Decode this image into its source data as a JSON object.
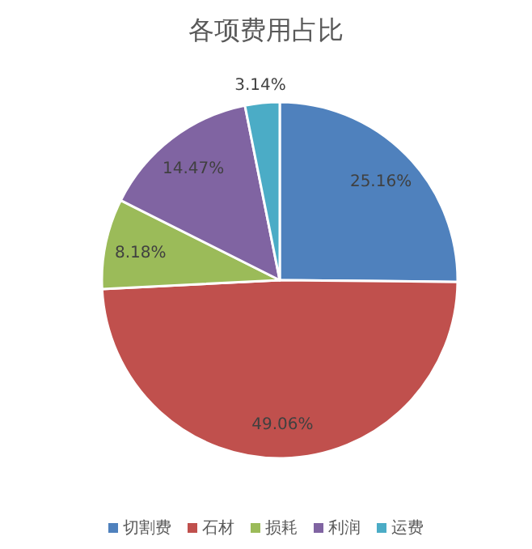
{
  "chart_data": {
    "type": "pie",
    "title": "各项费用占比",
    "categories": [
      "切割费",
      "石材",
      "损耗",
      "利润",
      "运费"
    ],
    "values": [
      25.16,
      49.06,
      8.18,
      14.47,
      3.14
    ],
    "colors": [
      "#4f81bd",
      "#c0504d",
      "#9bbb59",
      "#8064a2",
      "#4bacc6"
    ],
    "value_labels": [
      "25.16%",
      "49.06%",
      "8.18%",
      "14.47%",
      "3.14%"
    ],
    "legend": "bottom"
  }
}
